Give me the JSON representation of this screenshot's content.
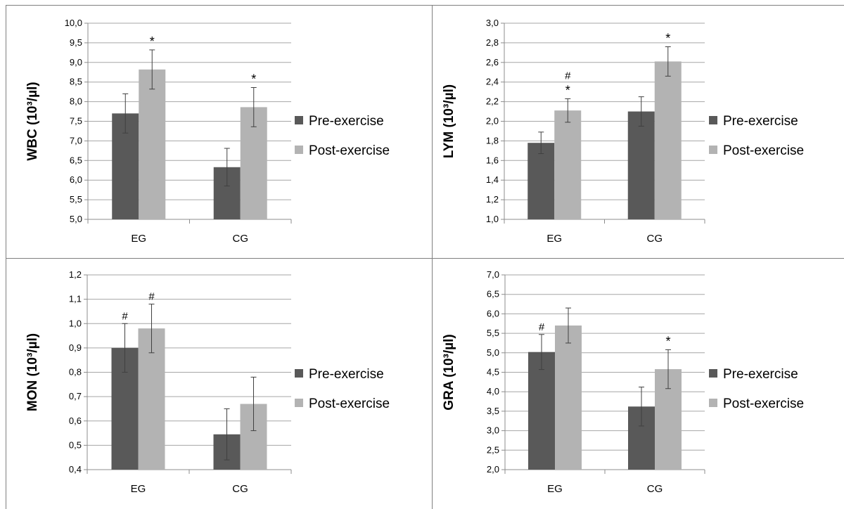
{
  "legend": {
    "pre": "Pre-exercise",
    "post": "Post-exercise"
  },
  "colors": {
    "pre": "#595959",
    "post": "#b3b3b3",
    "grid": "#a6a6a6",
    "axis": "#8c8c8c",
    "error": "#404040",
    "border": "#7f7f7f"
  },
  "chart_data": [
    {
      "type": "bar",
      "ylabel": "WBC (10³/µl)",
      "categories": [
        "EG",
        "CG"
      ],
      "ylim": [
        5.0,
        10.0
      ],
      "yticks": [
        "5,0",
        "5,5",
        "6,0",
        "6,5",
        "7,0",
        "7,5",
        "8,0",
        "8,5",
        "9,0",
        "9,5",
        "10,0"
      ],
      "series": [
        {
          "name": "Pre-exercise",
          "values": [
            7.7,
            6.33
          ],
          "errors": [
            0.5,
            0.48
          ],
          "marks": [
            "",
            ""
          ]
        },
        {
          "name": "Post-exercise",
          "values": [
            8.82,
            7.86
          ],
          "errors": [
            0.5,
            0.5
          ],
          "marks": [
            "*",
            "*"
          ]
        }
      ],
      "grid": true,
      "legend_position": "right"
    },
    {
      "type": "bar",
      "ylabel": "LYM (10³/µl)",
      "categories": [
        "EG",
        "CG"
      ],
      "ylim": [
        1.0,
        3.0
      ],
      "yticks": [
        "1,0",
        "1,2",
        "1,4",
        "1,6",
        "1,8",
        "2,0",
        "2,2",
        "2,4",
        "2,6",
        "2,8",
        "3,0"
      ],
      "series": [
        {
          "name": "Pre-exercise",
          "values": [
            1.78,
            2.1
          ],
          "errors": [
            0.11,
            0.15
          ],
          "marks": [
            "",
            ""
          ]
        },
        {
          "name": "Post-exercise",
          "values": [
            2.11,
            2.61
          ],
          "errors": [
            0.12,
            0.15
          ],
          "marks": [
            "#\n*",
            "*"
          ]
        }
      ],
      "grid": true,
      "legend_position": "right"
    },
    {
      "type": "bar",
      "ylabel": "MON (10³/µl)",
      "categories": [
        "EG",
        "CG"
      ],
      "ylim": [
        0.4,
        1.2
      ],
      "yticks": [
        "0,4",
        "0,5",
        "0,6",
        "0,7",
        "0,8",
        "0,9",
        "1,0",
        "1,1",
        "1,2"
      ],
      "series": [
        {
          "name": "Pre-exercise",
          "values": [
            0.9,
            0.545
          ],
          "errors": [
            0.1,
            0.105
          ],
          "marks": [
            "#",
            ""
          ]
        },
        {
          "name": "Post-exercise",
          "values": [
            0.98,
            0.67
          ],
          "errors": [
            0.1,
            0.11
          ],
          "marks": [
            "#",
            ""
          ]
        }
      ],
      "grid": true,
      "legend_position": "right"
    },
    {
      "type": "bar",
      "ylabel": "GRA (10³/µl)",
      "categories": [
        "EG",
        "CG"
      ],
      "ylim": [
        2.0,
        7.0
      ],
      "yticks": [
        "2,0",
        "2,5",
        "3,0",
        "3,5",
        "4,0",
        "4,5",
        "5,0",
        "5,5",
        "6,0",
        "6,5",
        "7,0"
      ],
      "series": [
        {
          "name": "Pre-exercise",
          "values": [
            5.02,
            3.62
          ],
          "errors": [
            0.45,
            0.5
          ],
          "marks": [
            "#",
            ""
          ]
        },
        {
          "name": "Post-exercise",
          "values": [
            5.7,
            4.58
          ],
          "errors": [
            0.45,
            0.5
          ],
          "marks": [
            "",
            "*"
          ]
        }
      ],
      "grid": true,
      "legend_position": "right"
    }
  ]
}
